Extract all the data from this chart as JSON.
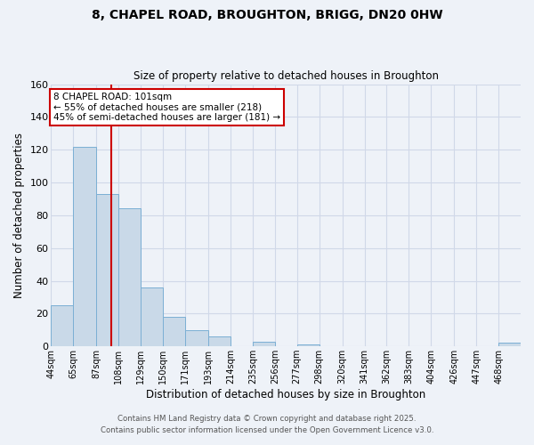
{
  "title": "8, CHAPEL ROAD, BROUGHTON, BRIGG, DN20 0HW",
  "subtitle": "Size of property relative to detached houses in Broughton",
  "xlabel": "Distribution of detached houses by size in Broughton",
  "ylabel": "Number of detached properties",
  "bar_labels": [
    "44sqm",
    "65sqm",
    "87sqm",
    "108sqm",
    "129sqm",
    "150sqm",
    "171sqm",
    "193sqm",
    "214sqm",
    "235sqm",
    "256sqm",
    "277sqm",
    "298sqm",
    "320sqm",
    "341sqm",
    "362sqm",
    "383sqm",
    "404sqm",
    "426sqm",
    "447sqm",
    "468sqm"
  ],
  "bar_values": [
    25,
    122,
    93,
    84,
    36,
    18,
    10,
    6,
    0,
    3,
    0,
    1,
    0,
    0,
    0,
    0,
    0,
    0,
    0,
    0,
    2
  ],
  "bar_color": "#c9d9e8",
  "bar_edgecolor": "#7bafd4",
  "vline_x": 101,
  "bin_edges": [
    44,
    65,
    87,
    108,
    129,
    150,
    171,
    193,
    214,
    235,
    256,
    277,
    298,
    320,
    341,
    362,
    383,
    404,
    426,
    447,
    468,
    489
  ],
  "ylim": [
    0,
    160
  ],
  "yticks": [
    0,
    20,
    40,
    60,
    80,
    100,
    120,
    140,
    160
  ],
  "annotation_title": "8 CHAPEL ROAD: 101sqm",
  "annotation_line1": "← 55% of detached houses are smaller (218)",
  "annotation_line2": "45% of semi-detached houses are larger (181) →",
  "annotation_box_color": "#ffffff",
  "annotation_box_edgecolor": "#cc0000",
  "vline_color": "#cc0000",
  "grid_color": "#d0d8e8",
  "background_color": "#eef2f8",
  "footer1": "Contains HM Land Registry data © Crown copyright and database right 2025.",
  "footer2": "Contains public sector information licensed under the Open Government Licence v3.0."
}
